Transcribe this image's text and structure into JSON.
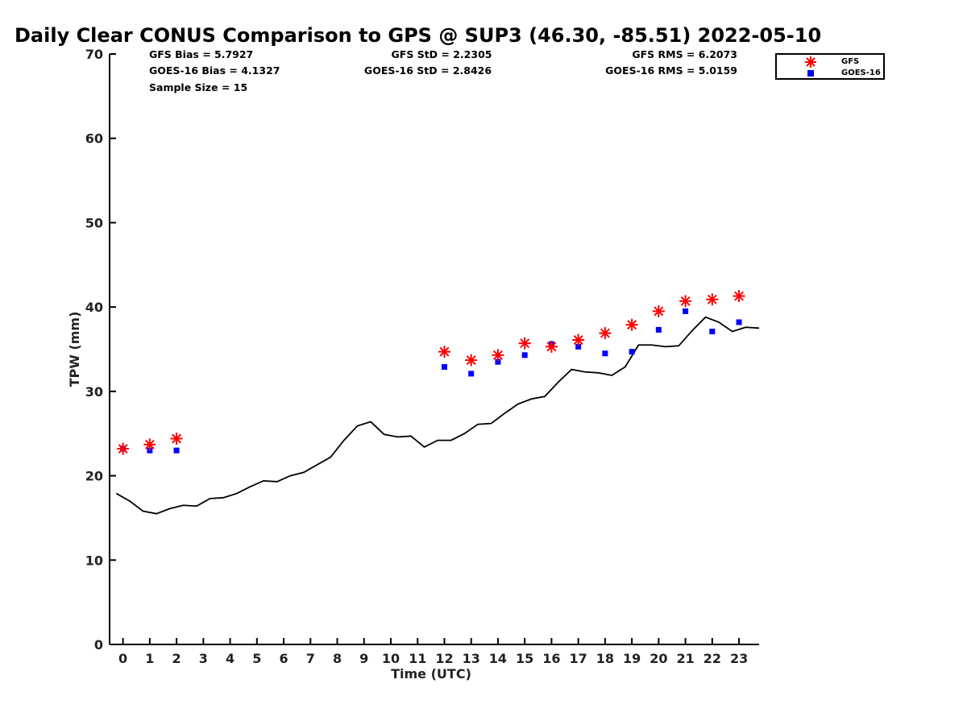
{
  "chart_data": {
    "type": "scatter",
    "title": "Daily Clear CONUS Comparison to GPS @ SUP3 (46.30, -85.51) 2022-05-10",
    "xlabel": "Time (UTC)",
    "ylabel": "TPW (mm)",
    "xlim": [
      -0.5,
      23.75
    ],
    "ylim": [
      0,
      70
    ],
    "xticks": [
      0,
      1,
      2,
      3,
      4,
      5,
      6,
      7,
      8,
      9,
      10,
      11,
      12,
      13,
      14,
      15,
      16,
      17,
      18,
      19,
      20,
      21,
      22,
      23
    ],
    "yticks": [
      0,
      10,
      20,
      30,
      40,
      50,
      60,
      70
    ],
    "grid": false,
    "legend_position": "top-right outside",
    "stats": {
      "gfs_bias": "GFS Bias = 5.7927",
      "goes_bias": "GOES-16 Bias = 4.1327",
      "sample_size": "Sample Size = 15",
      "gfs_std": "GFS StD = 2.2305",
      "goes_std": "GOES-16 StD = 2.8426",
      "gfs_rms": "GFS RMS = 6.2073",
      "goes_rms": "GOES-16 RMS = 5.0159"
    },
    "series": [
      {
        "name": "GFS",
        "marker": "asterisk",
        "color": "#ff0000",
        "x": [
          0,
          1,
          2,
          12,
          13,
          14,
          15,
          16,
          17,
          18,
          19,
          20,
          21,
          22,
          23
        ],
        "y": [
          23.2,
          23.7,
          24.4,
          34.7,
          33.7,
          34.3,
          35.7,
          35.3,
          36.1,
          36.9,
          37.9,
          39.5,
          40.7,
          40.9,
          41.3
        ]
      },
      {
        "name": "GOES-16",
        "marker": "square",
        "color": "#0000ff",
        "x": [
          0,
          1,
          2,
          12,
          13,
          14,
          15,
          16,
          17,
          18,
          19,
          20,
          21,
          22,
          23
        ],
        "y": [
          23.2,
          23.0,
          23.0,
          32.9,
          32.1,
          33.5,
          34.3,
          35.6,
          35.3,
          34.5,
          34.7,
          37.3,
          39.5,
          37.1,
          38.2
        ]
      },
      {
        "marker": "line",
        "color": "#000000",
        "x": [
          -0.25,
          0.25,
          0.75,
          1.25,
          1.75,
          2.25,
          2.75,
          3.25,
          3.75,
          4.25,
          4.75,
          5.25,
          5.75,
          6.25,
          6.75,
          7.25,
          7.75,
          8.25,
          8.75,
          9.25,
          9.75,
          10.25,
          10.75,
          11.25,
          11.75,
          12.25,
          12.75,
          13.25,
          13.75,
          14.25,
          14.75,
          15.25,
          15.75,
          16.25,
          16.75,
          17.25,
          17.75,
          18.25,
          18.75,
          19.25,
          19.75,
          20.25,
          20.75,
          21.25,
          21.75,
          22.25,
          22.75,
          23.25,
          23.75
        ],
        "y": [
          17.9,
          17.0,
          15.8,
          15.5,
          16.1,
          16.5,
          16.4,
          17.3,
          17.4,
          17.9,
          18.7,
          19.4,
          19.3,
          20.0,
          20.4,
          21.3,
          22.2,
          24.2,
          25.9,
          26.4,
          24.9,
          24.6,
          24.7,
          23.4,
          24.2,
          24.2,
          25.0,
          26.1,
          26.2,
          27.4,
          28.5,
          29.1,
          29.4,
          31.1,
          32.6,
          32.3,
          32.2,
          31.9,
          32.9,
          35.5,
          35.5,
          35.3,
          35.4,
          37.2,
          38.8,
          38.2,
          37.1,
          37.6,
          37.5
        ]
      }
    ]
  }
}
